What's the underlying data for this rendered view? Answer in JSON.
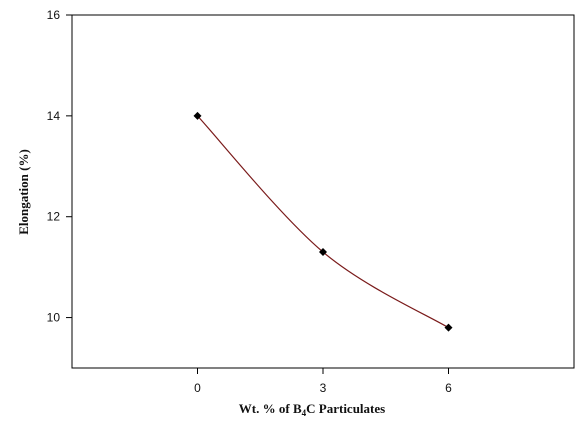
{
  "chart_data": {
    "type": "line",
    "title": "",
    "xlabel": "Wt. % of B",
    "xlabel_subscript": "4",
    "xlabel_suffix": "C Particulates",
    "ylabel": "Elongation (%)",
    "x": [
      0,
      3,
      6
    ],
    "xlim": [
      -3,
      9
    ],
    "ylim": [
      9,
      16
    ],
    "xticks": [
      0,
      3,
      6
    ],
    "yticks": [
      10,
      12,
      14,
      16
    ],
    "grid": false,
    "legend": "none",
    "series": [
      {
        "values": [
          14.0,
          11.3,
          9.8
        ],
        "line_color": "#7a1a1a",
        "marker": "diamond",
        "marker_color": "#000000"
      }
    ]
  }
}
